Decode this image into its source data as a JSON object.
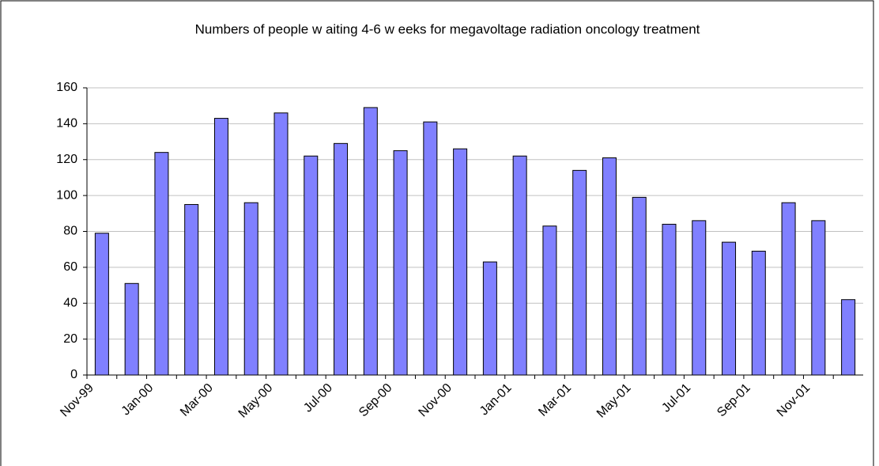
{
  "chart_data": {
    "type": "bar",
    "title": "Numbers of people w aiting 4-6 w eeks for megavoltage radiation oncology treatment",
    "categories": [
      "Nov-99",
      null,
      "Jan-00",
      null,
      "Mar-00",
      null,
      "May-00",
      null,
      "Jul-00",
      null,
      "Sep-00",
      null,
      "Nov-00",
      null,
      "Jan-01",
      null,
      "Mar-01",
      null,
      "May-01",
      null,
      "Jul-01",
      null,
      "Sep-01",
      null,
      "Nov-01",
      null
    ],
    "values": [
      79,
      51,
      124,
      95,
      143,
      96,
      146,
      122,
      129,
      149,
      125,
      141,
      126,
      63,
      122,
      83,
      114,
      121,
      99,
      84,
      86,
      74,
      69,
      96,
      86,
      42
    ],
    "color": "#8080ff",
    "ylim": [
      0,
      160
    ],
    "yticks": [
      0,
      20,
      40,
      60,
      80,
      100,
      120,
      140,
      160
    ],
    "grid": true
  }
}
